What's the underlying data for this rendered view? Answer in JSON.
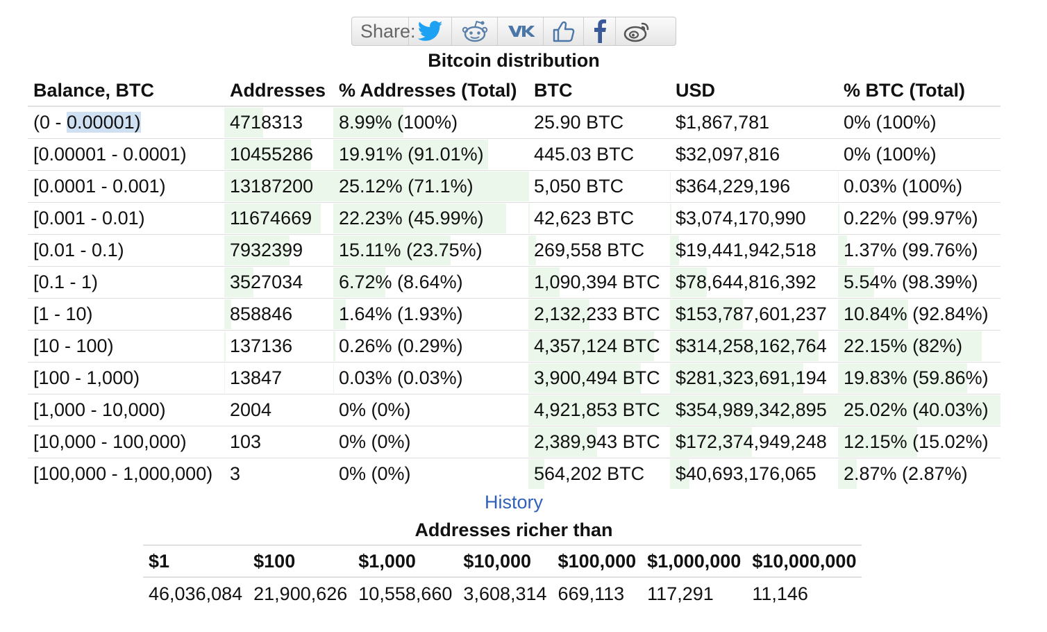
{
  "share": {
    "label": "Share:",
    "buttons": [
      {
        "name": "twitter-icon",
        "color": "#1da1f2"
      },
      {
        "name": "reddit-icon",
        "color": "#5f99cf"
      },
      {
        "name": "vk-icon",
        "color": "#4a76a8"
      },
      {
        "name": "like-icon",
        "color": "#4a76a8"
      },
      {
        "name": "facebook-icon",
        "color": "#3b5998"
      },
      {
        "name": "weibo-icon",
        "color": "#666666"
      }
    ]
  },
  "distribution": {
    "title": "Bitcoin distribution",
    "headers": [
      "Balance, BTC",
      "Addresses",
      "% Addresses (Total)",
      "BTC",
      "USD",
      "% BTC (Total)"
    ],
    "rows": [
      {
        "balance_prefix": "(0 - ",
        "balance_selected": "0.00001)",
        "addresses": "4718313",
        "pct_addresses": "8.99% (100%)",
        "btc": "25.90 BTC",
        "usd": "$1,867,781",
        "pct_btc": "0% (100%)",
        "addr_frac": 0.357,
        "pct_frac": 0.358,
        "btc_frac": 0.0,
        "usd_frac": 0.0,
        "pctbtc_frac": 0.0
      },
      {
        "balance_prefix": "",
        "balance": "[0.00001 - 0.0001)",
        "addresses": "10455286",
        "pct_addresses": "19.91% (91.01%)",
        "btc": "445.03 BTC",
        "usd": "$32,097,816",
        "pct_btc": "0% (100%)",
        "addr_frac": 0.793,
        "pct_frac": 0.793,
        "btc_frac": 0.0,
        "usd_frac": 0.0,
        "pctbtc_frac": 0.0
      },
      {
        "balance": "[0.0001 - 0.001)",
        "addresses": "13187200",
        "pct_addresses": "25.12% (71.1%)",
        "btc": "5,050 BTC",
        "usd": "$364,229,196",
        "pct_btc": "0.03% (100%)",
        "addr_frac": 1.0,
        "pct_frac": 1.0,
        "btc_frac": 0.001,
        "usd_frac": 0.001,
        "pctbtc_frac": 0.001
      },
      {
        "balance": "[0.001 - 0.01)",
        "addresses": "11674669",
        "pct_addresses": "22.23% (45.99%)",
        "btc": "42,623 BTC",
        "usd": "$3,074,170,990",
        "pct_btc": "0.22% (99.97%)",
        "addr_frac": 0.885,
        "pct_frac": 0.885,
        "btc_frac": 0.009,
        "usd_frac": 0.009,
        "pctbtc_frac": 0.009
      },
      {
        "balance": "[0.01 - 0.1)",
        "addresses": "7932399",
        "pct_addresses": "15.11% (23.75%)",
        "btc": "269,558 BTC",
        "usd": "$19,441,942,518",
        "pct_btc": "1.37% (99.76%)",
        "addr_frac": 0.601,
        "pct_frac": 0.601,
        "btc_frac": 0.055,
        "usd_frac": 0.055,
        "pctbtc_frac": 0.055
      },
      {
        "balance": "[0.1 - 1)",
        "addresses": "3527034",
        "pct_addresses": "6.72% (8.64%)",
        "btc": "1,090,394 BTC",
        "usd": "$78,644,816,392",
        "pct_btc": "5.54% (98.39%)",
        "addr_frac": 0.267,
        "pct_frac": 0.267,
        "btc_frac": 0.221,
        "usd_frac": 0.221,
        "pctbtc_frac": 0.221
      },
      {
        "balance": "[1 - 10)",
        "addresses": "858846",
        "pct_addresses": "1.64% (1.93%)",
        "btc": "2,132,233 BTC",
        "usd": "$153,787,601,237",
        "pct_btc": "10.84% (92.84%)",
        "addr_frac": 0.065,
        "pct_frac": 0.065,
        "btc_frac": 0.433,
        "usd_frac": 0.433,
        "pctbtc_frac": 0.433
      },
      {
        "balance": "[10 - 100)",
        "addresses": "137136",
        "pct_addresses": "0.26% (0.29%)",
        "btc": "4,357,124 BTC",
        "usd": "$314,258,162,764",
        "pct_btc": "22.15% (82%)",
        "addr_frac": 0.01,
        "pct_frac": 0.01,
        "btc_frac": 0.885,
        "usd_frac": 0.885,
        "pctbtc_frac": 0.885
      },
      {
        "balance": "[100 - 1,000)",
        "addresses": "13847",
        "pct_addresses": "0.03% (0.03%)",
        "btc": "3,900,494 BTC",
        "usd": "$281,323,691,194",
        "pct_btc": "19.83% (59.86%)",
        "addr_frac": 0.001,
        "pct_frac": 0.001,
        "btc_frac": 0.793,
        "usd_frac": 0.793,
        "pctbtc_frac": 0.793
      },
      {
        "balance": "[1,000 - 10,000)",
        "addresses": "2004",
        "pct_addresses": "0% (0%)",
        "btc": "4,921,853 BTC",
        "usd": "$354,989,342,895",
        "pct_btc": "25.02% (40.03%)",
        "addr_frac": 0.0,
        "pct_frac": 0.0,
        "btc_frac": 1.0,
        "usd_frac": 1.0,
        "pctbtc_frac": 1.0
      },
      {
        "balance": "[10,000 - 100,000)",
        "addresses": "103",
        "pct_addresses": "0% (0%)",
        "btc": "2,389,943 BTC",
        "usd": "$172,374,949,248",
        "pct_btc": "12.15% (15.02%)",
        "addr_frac": 0.0,
        "pct_frac": 0.0,
        "btc_frac": 0.486,
        "usd_frac": 0.486,
        "pctbtc_frac": 0.486
      },
      {
        "balance": "[100,000 - 1,000,000)",
        "addresses": "3",
        "pct_addresses": "0% (0%)",
        "btc": "564,202 BTC",
        "usd": "$40,693,176,065",
        "pct_btc": "2.87% (2.87%)",
        "addr_frac": 0.0,
        "pct_frac": 0.0,
        "btc_frac": 0.115,
        "usd_frac": 0.115,
        "pctbtc_frac": 0.115
      }
    ]
  },
  "history": {
    "label": "History"
  },
  "richer": {
    "title": "Addresses richer than",
    "headers": [
      "$1",
      "$100",
      "$1,000",
      "$10,000",
      "$100,000",
      "$1,000,000",
      "$10,000,000"
    ],
    "values": [
      "46,036,084",
      "21,900,626",
      "10,558,660",
      "3,608,314",
      "669,113",
      "117,291",
      "11,146"
    ]
  },
  "colors": {
    "bar": "#eaf7ea",
    "selection": "#cfe0f3",
    "link": "#3060b8"
  }
}
